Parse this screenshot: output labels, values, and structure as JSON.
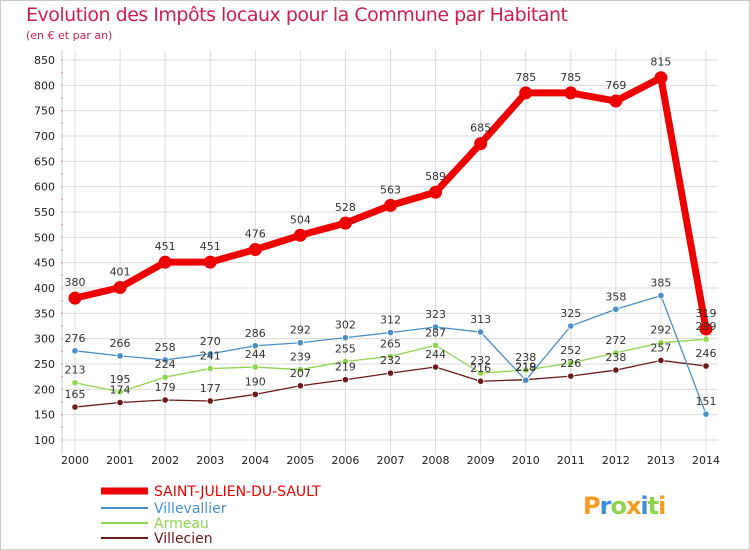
{
  "chart_data": {
    "type": "line",
    "title": "Evolution des Impôts locaux pour la Commune par Habitant",
    "subtitle": "(en € et par an)",
    "xlabel": "",
    "ylabel": "",
    "x": [
      "2000",
      "2001",
      "2002",
      "2003",
      "2004",
      "2005",
      "2006",
      "2007",
      "2008",
      "2009",
      "2010",
      "2011",
      "2012",
      "2013",
      "2014"
    ],
    "ylim": [
      100,
      850
    ],
    "yticks": [
      100,
      150,
      200,
      250,
      300,
      350,
      400,
      450,
      500,
      550,
      600,
      650,
      700,
      750,
      800,
      850
    ],
    "grid": "horizontal",
    "legend_position": "bottom-left",
    "series": [
      {
        "name": "SAINT-JULIEN-DU-SAULT",
        "color": "#ee0000",
        "values": [
          380,
          401,
          451,
          451,
          476,
          504,
          528,
          563,
          589,
          685,
          785,
          785,
          769,
          815,
          319
        ]
      },
      {
        "name": "Villevallier",
        "color": "#4a90c8",
        "values": [
          276,
          266,
          258,
          270,
          286,
          292,
          302,
          312,
          323,
          313,
          218,
          325,
          358,
          385,
          151
        ]
      },
      {
        "name": "Armeau",
        "color": "#8fd44f",
        "values": [
          213,
          195,
          224,
          241,
          244,
          239,
          255,
          265,
          287,
          232,
          238,
          252,
          272,
          292,
          299
        ]
      },
      {
        "name": "Villecien",
        "color": "#6b1a1a",
        "values": [
          165,
          174,
          179,
          177,
          190,
          207,
          219,
          232,
          244,
          216,
          219,
          226,
          238,
          257,
          246
        ]
      }
    ]
  },
  "logo": {
    "text": "Proxiti",
    "colors": [
      "#f59b21",
      "#3b8ed8",
      "#8fd44f",
      "#f59b21",
      "#3b8ed8",
      "#8fd44f",
      "#f59b21"
    ]
  }
}
